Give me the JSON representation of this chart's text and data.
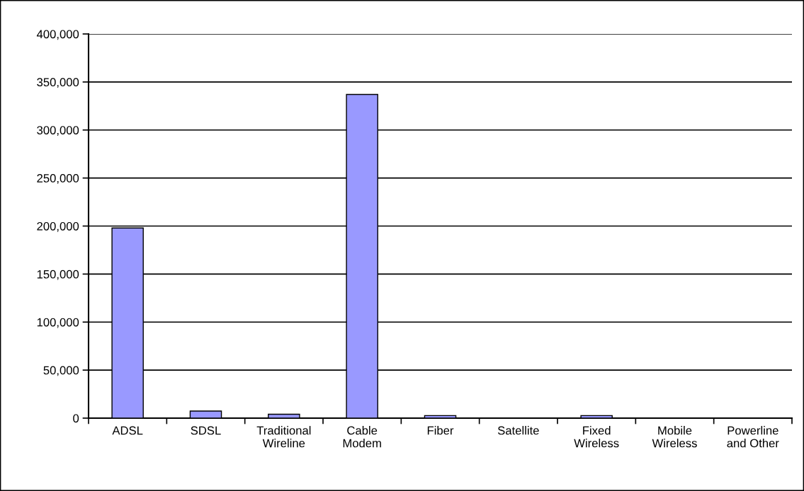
{
  "chart_data": {
    "type": "bar",
    "categories": [
      "ADSL",
      "SDSL",
      "Traditional\nWireline",
      "Cable\nModem",
      "Fiber",
      "Satellite",
      "Fixed\nWireless",
      "Mobile\nWireless",
      "Powerline\nand Other"
    ],
    "values": [
      198000,
      7400,
      4100,
      337000,
      2700,
      0,
      2700,
      0,
      0
    ],
    "color": "#9999ff",
    "ylim": [
      0,
      400000
    ],
    "yticks": [
      {
        "value": 0,
        "label": "0"
      },
      {
        "value": 50000,
        "label": "50,000"
      },
      {
        "value": 100000,
        "label": "100,000"
      },
      {
        "value": 150000,
        "label": "150,000"
      },
      {
        "value": 200000,
        "label": "200,000"
      },
      {
        "value": 250000,
        "label": "250,000"
      },
      {
        "value": 300000,
        "label": "300,000"
      },
      {
        "value": 350000,
        "label": "350,000"
      },
      {
        "value": 400000,
        "label": "400,000"
      }
    ],
    "grid": "y",
    "legend": false
  }
}
